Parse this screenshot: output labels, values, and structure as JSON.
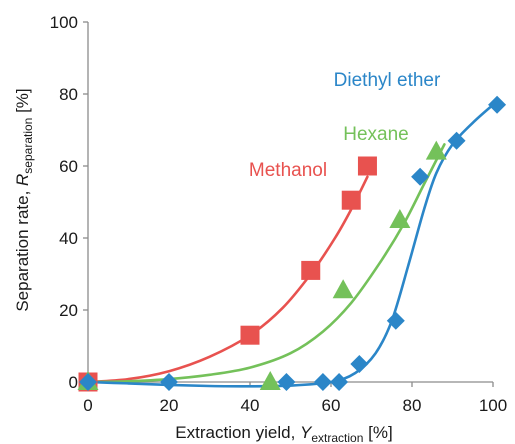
{
  "chart_data": {
    "type": "scatter",
    "xlabel": {
      "main": "Extraction yield, ",
      "var": "Y",
      "sub": "extraction",
      "unit": " [%]"
    },
    "ylabel": {
      "main": "Separation rate, ",
      "var": "R",
      "sub": "separation",
      "unit": " [%]"
    },
    "xlim": [
      0,
      100
    ],
    "ylim": [
      0,
      100
    ],
    "x_ticks": [
      0,
      20,
      40,
      60,
      80,
      100
    ],
    "y_ticks": [
      0,
      20,
      40,
      60,
      80,
      100
    ],
    "grid": false,
    "series": [
      {
        "name": "Methanol",
        "marker": "square",
        "color": "#e8524f",
        "points": [
          [
            0,
            0
          ],
          [
            40,
            13
          ],
          [
            55,
            31
          ],
          [
            65,
            50.5
          ],
          [
            69,
            60
          ]
        ],
        "fit": [
          [
            0,
            0
          ],
          [
            10,
            0.8
          ],
          [
            20,
            3
          ],
          [
            30,
            7
          ],
          [
            40,
            13
          ],
          [
            48,
            20.5
          ],
          [
            55,
            30
          ],
          [
            61,
            40
          ],
          [
            65,
            48
          ],
          [
            69,
            57
          ]
        ]
      },
      {
        "name": "Hexane",
        "marker": "triangle",
        "color": "#74c15a",
        "points": [
          [
            0,
            0
          ],
          [
            45,
            0
          ],
          [
            63,
            25.5
          ],
          [
            77,
            45
          ],
          [
            86,
            64
          ]
        ],
        "fit": [
          [
            0,
            0
          ],
          [
            10,
            0.2
          ],
          [
            20,
            0.8
          ],
          [
            30,
            2
          ],
          [
            40,
            4
          ],
          [
            50,
            8
          ],
          [
            58,
            14
          ],
          [
            65,
            22
          ],
          [
            72,
            33
          ],
          [
            78,
            44
          ],
          [
            83,
            55
          ],
          [
            88,
            66
          ]
        ]
      },
      {
        "name": "Diethyl ether",
        "marker": "diamond",
        "color": "#2b86c8",
        "points": [
          [
            0,
            0
          ],
          [
            20,
            0
          ],
          [
            49,
            0
          ],
          [
            58,
            0
          ],
          [
            62,
            0
          ],
          [
            67,
            5
          ],
          [
            76,
            17
          ],
          [
            82,
            57
          ],
          [
            91,
            67
          ],
          [
            101,
            77
          ]
        ],
        "fit": [
          [
            0,
            0
          ],
          [
            10,
            -0.4
          ],
          [
            20,
            -0.8
          ],
          [
            30,
            -1.1
          ],
          [
            40,
            -1.2
          ],
          [
            50,
            -1
          ],
          [
            60,
            0
          ],
          [
            66,
            2.5
          ],
          [
            71,
            8
          ],
          [
            75,
            17
          ],
          [
            79,
            32
          ],
          [
            83,
            48
          ],
          [
            86,
            58
          ],
          [
            90,
            66
          ],
          [
            95,
            72
          ],
          [
            100,
            77
          ]
        ]
      }
    ]
  }
}
